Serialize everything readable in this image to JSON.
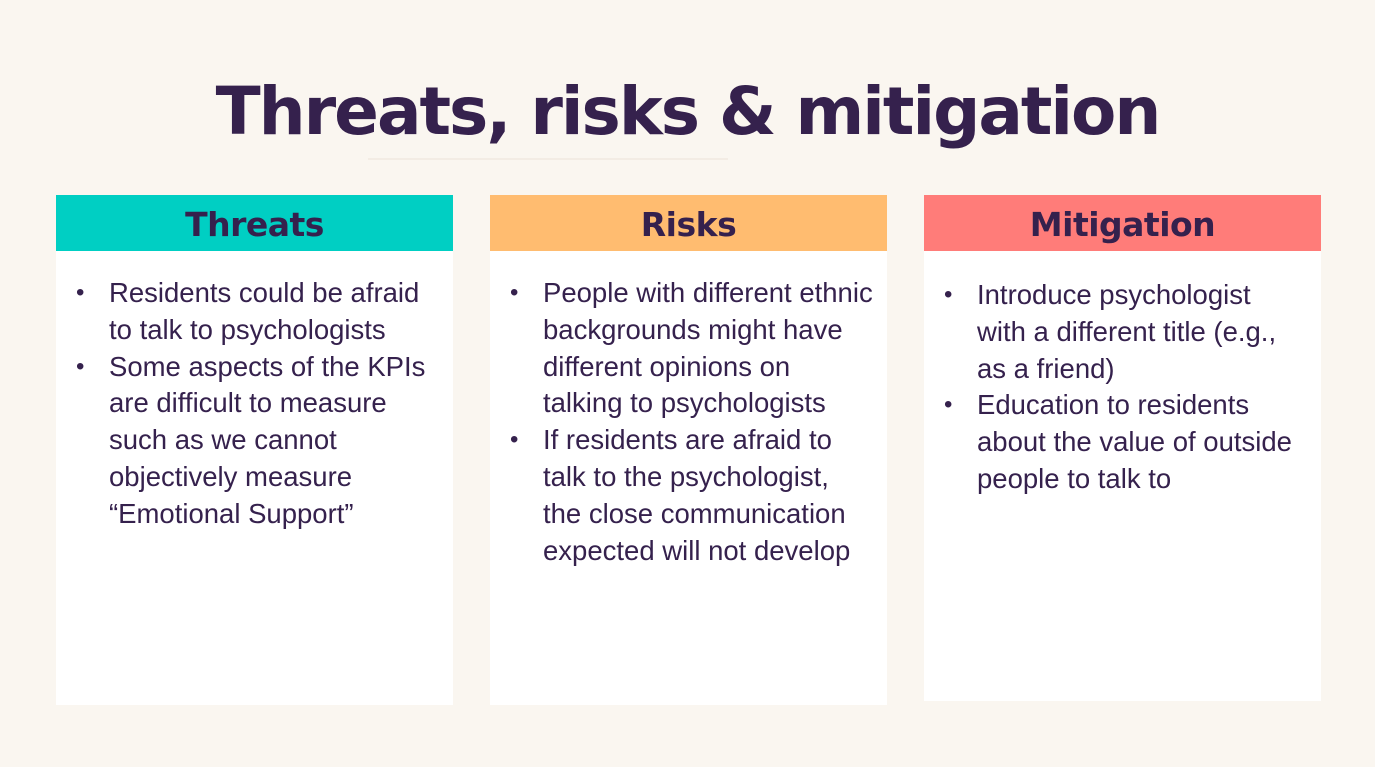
{
  "slide": {
    "title": "Threats, risks & mitigation"
  },
  "columns": [
    {
      "header": "Threats",
      "color": "#00cfc3",
      "items": [
        "Residents could be afraid to talk to psychologists",
        "Some aspects of the KPIs are difficult to measure such as we cannot objectively measure “Emotional Support”"
      ]
    },
    {
      "header": "Risks",
      "color": "#ffbc70",
      "items": [
        "People with different ethnic backgrounds might have different opinions on talking to psychologists",
        "If residents are afraid to talk to the psychologist, the close communication expected will not develop"
      ]
    },
    {
      "header": "Mitigation",
      "color": "#ff7c79",
      "items": [
        "Introduce psychologist with a different title (e.g., as a friend)",
        "Education to residents about the value of outside people to talk to"
      ]
    }
  ]
}
